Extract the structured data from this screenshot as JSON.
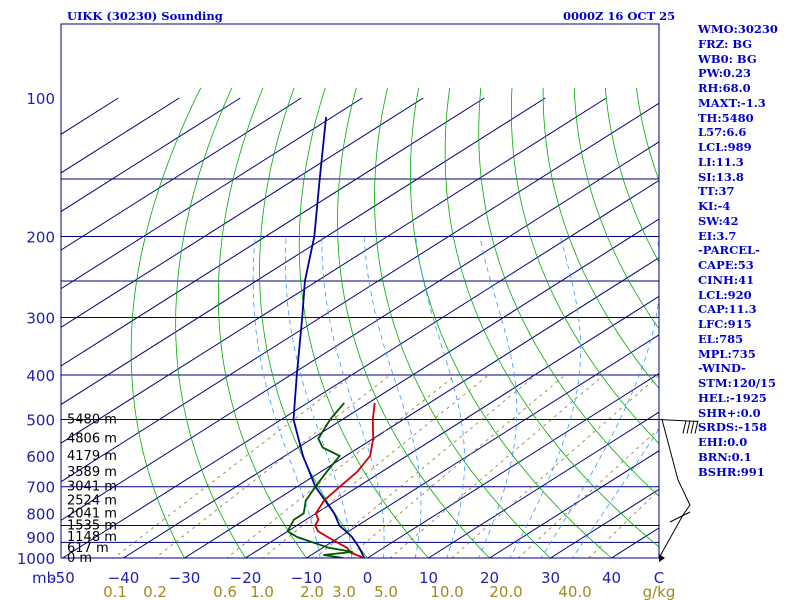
{
  "header": {
    "station": "UIKK (30230) Sounding",
    "time": "0000Z 16 OCT 25"
  },
  "indices": [
    "WMO:30230",
    "FRZ: BG",
    "WB0: BG",
    "PW:0.23",
    "RH:68.0",
    "MAXT:-1.3",
    "TH:5480",
    "L57:6.6",
    "LCL:989",
    "LI:11.3",
    "SI:13.8",
    "TT:37",
    "KI:-4",
    "SW:42",
    "EI:3.7",
    "-PARCEL-",
    "CAPE:53",
    "CINH:41",
    "LCL:920",
    "CAP:11.3",
    "LFC:915",
    "EL:785",
    "MPL:735",
    "-WIND-",
    "STM:120/15",
    "HEL:-1925",
    "SHR+:0.0",
    "SRDS:-158",
    "EHI:0.0",
    "BRN:0.1",
    "BSHR:991"
  ],
  "colors": {
    "frame": "#000080",
    "isobar": "#000080",
    "isotherm": "#000080",
    "dry_adiabat": "#00aa00",
    "moist_adiabat": "#3399ff",
    "mixing": "#8b7a30",
    "temp": "#cc0000",
    "dewpoint": "#005500",
    "parcel": "#000099",
    "text": "#0000cc"
  },
  "chart_data": {
    "type": "skew-t",
    "title": "UIKK (30230) Sounding",
    "ylabel": "mb",
    "pressure_ticks": [
      1000,
      900,
      800,
      700,
      600,
      500,
      400,
      300,
      200,
      100
    ],
    "pressure_tick_labels": [
      "1000",
      "900",
      "800",
      "700",
      "600",
      "500",
      "400",
      "300",
      "200",
      "100"
    ],
    "isobars": [
      1000,
      925,
      850,
      700,
      500,
      400,
      300,
      250,
      200,
      150
    ],
    "xlim": [
      -50,
      50
    ],
    "temp_ticks": [
      -50,
      -40,
      -30,
      -20,
      -10,
      0,
      10,
      20,
      30,
      40,
      50
    ],
    "temp_tick_labels": [
      "-50",
      "−40",
      "−30",
      "−20",
      "−10",
      "0",
      "10",
      "20",
      "30",
      "40",
      "C"
    ],
    "mixing_labels": [
      "0.1",
      "0.2",
      "0.6",
      "1.0",
      "2.0",
      "3.0",
      "5.0",
      "10.0",
      "20.0",
      "40.0",
      "g/kg"
    ],
    "mixing_ratios": [
      0.1,
      0.2,
      0.6,
      1.0,
      2.0,
      3.0,
      5.0,
      10.0,
      20.0,
      40.0
    ],
    "height_labels": [
      {
        "p": 1000,
        "label": "0 m"
      },
      {
        "p": 950,
        "label": "617 m"
      },
      {
        "p": 900,
        "label": "1148 m"
      },
      {
        "p": 850,
        "label": "1535 m"
      },
      {
        "p": 800,
        "label": "2041 m"
      },
      {
        "p": 750,
        "label": "2524 m"
      },
      {
        "p": 700,
        "label": "3041 m"
      },
      {
        "p": 650,
        "label": "3589 m"
      },
      {
        "p": 600,
        "label": "4179 m"
      },
      {
        "p": 550,
        "label": "4806 m"
      },
      {
        "p": 500,
        "label": "5480 m"
      }
    ],
    "temperature": [
      [
        1000,
        -0.5
      ],
      [
        975,
        -4
      ],
      [
        950,
        -6
      ],
      [
        925,
        -9
      ],
      [
        900,
        -12
      ],
      [
        875,
        -15
      ],
      [
        850,
        -17
      ],
      [
        825,
        -18
      ],
      [
        800,
        -20
      ],
      [
        750,
        -22
      ],
      [
        700,
        -23
      ],
      [
        650,
        -24
      ],
      [
        600,
        -26
      ],
      [
        550,
        -30
      ],
      [
        500,
        -35
      ],
      [
        460,
        -39
      ]
    ],
    "dewpoint": [
      [
        1000,
        -4
      ],
      [
        985,
        -8
      ],
      [
        970,
        -4
      ],
      [
        950,
        -9
      ],
      [
        925,
        -13
      ],
      [
        900,
        -17
      ],
      [
        875,
        -20
      ],
      [
        850,
        -21
      ],
      [
        825,
        -22
      ],
      [
        800,
        -22
      ],
      [
        750,
        -25
      ],
      [
        700,
        -27
      ],
      [
        650,
        -29
      ],
      [
        600,
        -31
      ],
      [
        575,
        -36
      ],
      [
        550,
        -39
      ],
      [
        500,
        -42
      ],
      [
        460,
        -44
      ]
    ],
    "parcel": [
      [
        1000,
        -0.5
      ],
      [
        950,
        -4
      ],
      [
        900,
        -8
      ],
      [
        850,
        -13
      ],
      [
        800,
        -17
      ],
      [
        700,
        -27
      ],
      [
        600,
        -37
      ],
      [
        500,
        -48
      ],
      [
        400,
        -59
      ],
      [
        300,
        -73
      ],
      [
        250,
        -82
      ],
      [
        200,
        -92
      ],
      [
        150,
        -106
      ],
      [
        110,
        -121
      ]
    ],
    "winds": [
      {
        "p": 1000,
        "spd_kt": 5
      },
      {
        "p": 880,
        "spd_kt": 20
      },
      {
        "p": 720,
        "spd_kt": 15
      },
      {
        "p": 500,
        "spd_kt": 35
      }
    ]
  }
}
